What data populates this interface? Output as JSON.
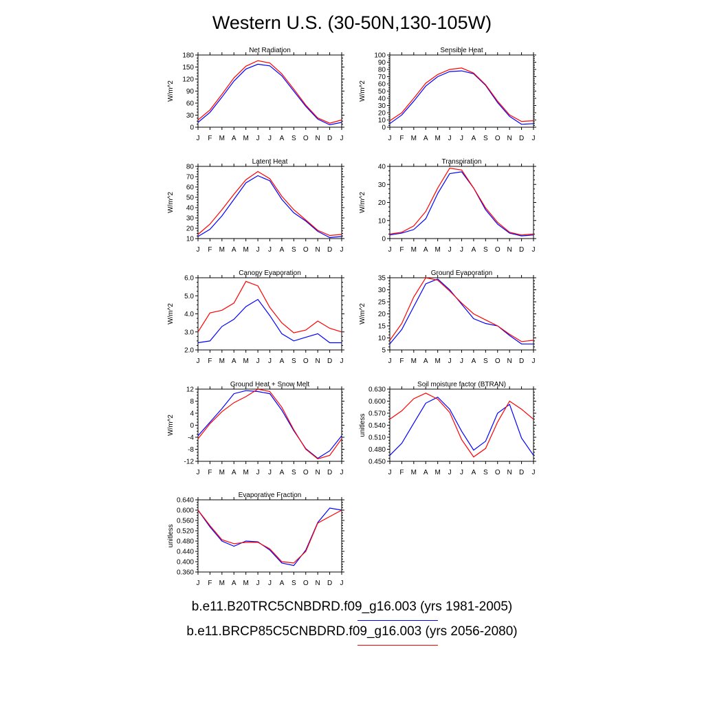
{
  "title": "Western U.S. (30-50N,130-105W)",
  "months": [
    "J",
    "F",
    "M",
    "A",
    "M",
    "J",
    "J",
    "A",
    "S",
    "O",
    "N",
    "D",
    "J"
  ],
  "legend": [
    {
      "label": "b.e11.B20TRC5CNBDRD.f09_g16.003 (yrs 1981-2005)",
      "color": "#0000ff"
    },
    {
      "label": "b.e11.BRCP85C5CNBDRD.f09_g16.003 (yrs 2056-2080)",
      "color": "#ff0000"
    }
  ],
  "chart_data": [
    {
      "type": "line",
      "title": "Net Radiation",
      "ylabel": "W/m^2",
      "ylim": [
        0,
        180
      ],
      "yticks": [
        "0",
        "30",
        "60",
        "90",
        "120",
        "150",
        "180"
      ],
      "ytick_values": [
        0,
        30,
        60,
        90,
        120,
        150,
        180
      ],
      "series": [
        {
          "color": "#0000ff",
          "values": [
            12,
            37,
            75,
            115,
            145,
            157,
            153,
            128,
            90,
            52,
            20,
            6,
            12
          ]
        },
        {
          "color": "#ff0000",
          "values": [
            18,
            43,
            82,
            123,
            152,
            166,
            160,
            133,
            95,
            55,
            23,
            10,
            18
          ]
        }
      ]
    },
    {
      "type": "line",
      "title": "Sensible Heat",
      "ylabel": "W/m^2",
      "ylim": [
        0,
        100
      ],
      "yticks": [
        "0",
        "10",
        "20",
        "30",
        "40",
        "50",
        "60",
        "70",
        "80",
        "90",
        "100"
      ],
      "ytick_values": [
        0,
        10,
        20,
        30,
        40,
        50,
        60,
        70,
        80,
        90,
        100
      ],
      "series": [
        {
          "color": "#0000ff",
          "values": [
            5,
            17,
            36,
            57,
            70,
            77,
            78,
            74,
            58,
            34,
            15,
            4,
            5
          ]
        },
        {
          "color": "#ff0000",
          "values": [
            9,
            20,
            40,
            61,
            73,
            80,
            82,
            75,
            59,
            36,
            17,
            8,
            9
          ]
        }
      ]
    },
    {
      "type": "line",
      "title": "Latent Heat",
      "ylabel": "W/m^2",
      "ylim": [
        10,
        80
      ],
      "yticks": [
        "10",
        "20",
        "30",
        "40",
        "50",
        "60",
        "70",
        "80"
      ],
      "ytick_values": [
        10,
        20,
        30,
        40,
        50,
        60,
        70,
        80
      ],
      "series": [
        {
          "color": "#0000ff",
          "values": [
            12,
            19,
            32,
            48,
            64,
            71,
            66,
            48,
            35,
            27,
            17,
            11,
            12
          ]
        },
        {
          "color": "#ff0000",
          "values": [
            14,
            24,
            38,
            53,
            67,
            75,
            68,
            51,
            38,
            28,
            18,
            13,
            14
          ]
        }
      ]
    },
    {
      "type": "line",
      "title": "Transpiration",
      "ylabel": "W/m^2",
      "ylim": [
        0,
        40
      ],
      "yticks": [
        "0",
        "10",
        "20",
        "30",
        "40"
      ],
      "ytick_values": [
        0,
        10,
        20,
        30,
        40
      ],
      "series": [
        {
          "color": "#0000ff",
          "values": [
            2,
            3,
            5,
            11,
            25,
            36,
            37,
            28,
            16,
            8,
            3,
            1.5,
            2
          ]
        },
        {
          "color": "#ff0000",
          "values": [
            2.5,
            3.5,
            7,
            15,
            28,
            39,
            38,
            28,
            17,
            9,
            3.5,
            2,
            2.5
          ]
        }
      ]
    },
    {
      "type": "line",
      "title": "Canopy Evaporation",
      "ylabel": "W/m^2",
      "ylim": [
        2.0,
        6.0
      ],
      "yticks": [
        "2.0",
        "3.0",
        "4.0",
        "5.0",
        "6.0"
      ],
      "ytick_values": [
        2,
        3,
        4,
        5,
        6
      ],
      "series": [
        {
          "color": "#0000ff",
          "values": [
            2.4,
            2.5,
            3.3,
            3.7,
            4.4,
            4.8,
            3.9,
            2.9,
            2.5,
            2.7,
            2.9,
            2.4,
            2.4
          ]
        },
        {
          "color": "#ff0000",
          "values": [
            3.0,
            4.05,
            4.2,
            4.6,
            5.8,
            5.55,
            4.35,
            3.5,
            2.95,
            3.1,
            3.6,
            3.2,
            3.0
          ]
        }
      ]
    },
    {
      "type": "line",
      "title": "Ground Evaporation",
      "ylabel": "W/m^2",
      "ylim": [
        5,
        35
      ],
      "yticks": [
        "5",
        "10",
        "15",
        "20",
        "25",
        "30",
        "35"
      ],
      "ytick_values": [
        5,
        10,
        15,
        20,
        25,
        30,
        35
      ],
      "series": [
        {
          "color": "#0000ff",
          "values": [
            7.5,
            13.5,
            23,
            32.5,
            34.5,
            30,
            24,
            18,
            16,
            15,
            11,
            7.5,
            7.5
          ]
        },
        {
          "color": "#ff0000",
          "values": [
            9,
            16,
            27,
            35,
            34,
            29.5,
            24.5,
            20,
            17.5,
            15,
            11.5,
            8.5,
            9
          ]
        }
      ]
    },
    {
      "type": "line",
      "title": "Ground Heat + Snow Melt",
      "ylabel": "W/m^2",
      "ylim": [
        -12,
        12
      ],
      "yticks": [
        "-12",
        "-8",
        "-4",
        "0",
        "4",
        "8",
        "12"
      ],
      "ytick_values": [
        -12,
        -8,
        -4,
        0,
        4,
        8,
        12
      ],
      "series": [
        {
          "color": "#0000ff",
          "values": [
            -3.5,
            1,
            5.5,
            10.5,
            11.5,
            11.2,
            10.5,
            5,
            -1.8,
            -7.8,
            -11,
            -8.5,
            -3.5
          ]
        },
        {
          "color": "#ff0000",
          "values": [
            -4.5,
            0.5,
            4.5,
            7.5,
            9.5,
            12,
            11.2,
            6,
            -1.5,
            -8,
            -11.2,
            -10,
            -4.5
          ]
        }
      ]
    },
    {
      "type": "line",
      "title": "Soil moisture factor (BTRAN)",
      "ylabel": "unitless",
      "ylim": [
        0.45,
        0.63
      ],
      "yticks": [
        "0.450",
        "0.480",
        "0.510",
        "0.540",
        "0.570",
        "0.600",
        "0.630"
      ],
      "ytick_values": [
        0.45,
        0.48,
        0.51,
        0.54,
        0.57,
        0.6,
        0.63
      ],
      "series": [
        {
          "color": "#0000ff",
          "values": [
            0.465,
            0.495,
            0.545,
            0.595,
            0.61,
            0.58,
            0.525,
            0.478,
            0.5,
            0.57,
            0.592,
            0.508,
            0.465
          ]
        },
        {
          "color": "#ff0000",
          "values": [
            0.555,
            0.576,
            0.606,
            0.62,
            0.605,
            0.572,
            0.504,
            0.461,
            0.482,
            0.548,
            0.6,
            0.58,
            0.555
          ]
        }
      ]
    },
    {
      "type": "line",
      "title": "Evaporative Fraction",
      "ylabel": "unitless",
      "ylim": [
        0.36,
        0.64
      ],
      "yticks": [
        "0.360",
        "0.400",
        "0.440",
        "0.480",
        "0.520",
        "0.560",
        "0.600",
        "0.640"
      ],
      "ytick_values": [
        0.36,
        0.4,
        0.44,
        0.48,
        0.52,
        0.56,
        0.6,
        0.64
      ],
      "series": [
        {
          "color": "#0000ff",
          "values": [
            0.6,
            0.535,
            0.48,
            0.46,
            0.48,
            0.477,
            0.445,
            0.395,
            0.385,
            0.445,
            0.552,
            0.608,
            0.6
          ]
        },
        {
          "color": "#ff0000",
          "values": [
            0.6,
            0.54,
            0.485,
            0.47,
            0.475,
            0.475,
            0.45,
            0.4,
            0.395,
            0.44,
            0.55,
            0.575,
            0.6
          ]
        }
      ]
    }
  ]
}
